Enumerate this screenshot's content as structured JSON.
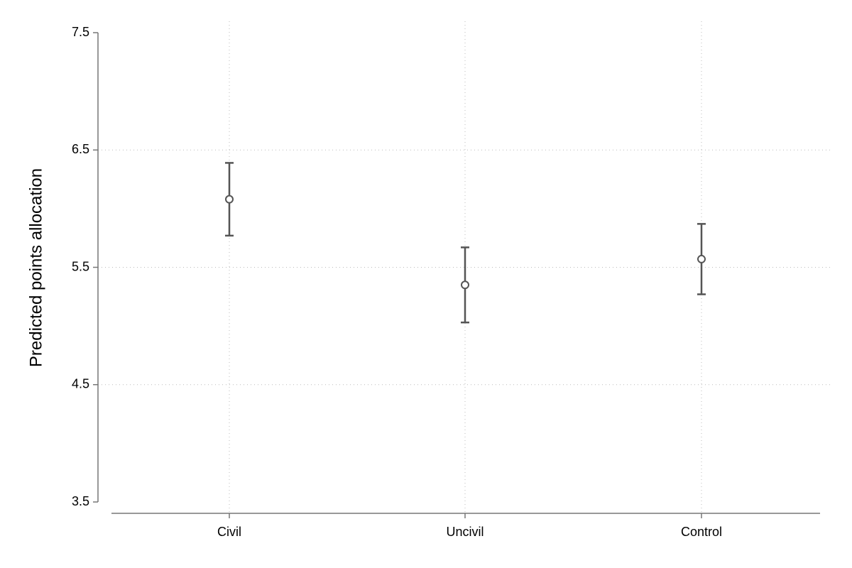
{
  "chart_data": {
    "type": "errorbar",
    "y_label": "Predicted points allocation",
    "categories": [
      "Civil",
      "Uncivil",
      "Control"
    ],
    "values": [
      6.08,
      5.35,
      5.57
    ],
    "errors": [
      0.31,
      0.32,
      0.3
    ],
    "color": "#555555",
    "ylim": [
      3.5,
      7.5
    ],
    "yticks": [
      3.5,
      4.5,
      5.5,
      6.5,
      7.5
    ],
    "grid": true
  }
}
